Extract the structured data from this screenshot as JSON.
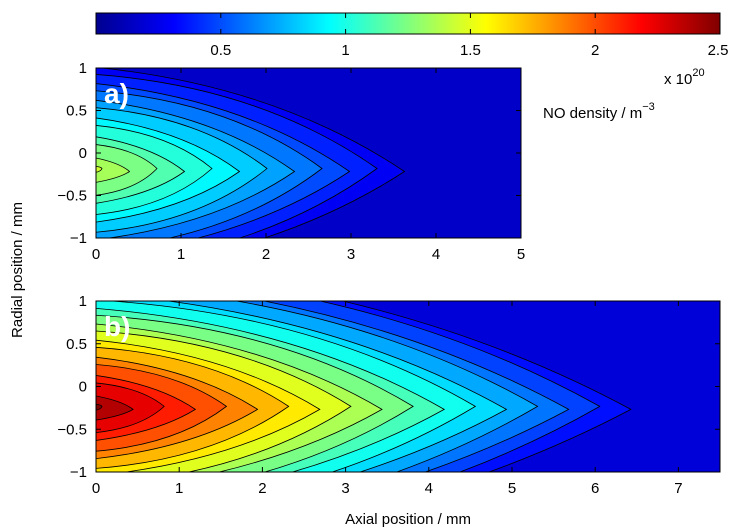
{
  "chart_data": [
    {
      "type": "heatmap",
      "panel_label": "a)",
      "x_ticks": [
        "0",
        "1",
        "2",
        "3",
        "4",
        "5"
      ],
      "y_ticks": [
        "1",
        "0.5",
        "0",
        "−0.5",
        "−1"
      ],
      "xlim": [
        0,
        5
      ],
      "ylim": [
        -1,
        1
      ],
      "hot_spot": {
        "x": 0,
        "y": -0.2,
        "value": 1.45
      },
      "field_description": "NO density peaks near axial 0, radial -0.2 and decays axially (faster than panel b)"
    },
    {
      "type": "heatmap",
      "panel_label": "b)",
      "x_ticks": [
        "0",
        "1",
        "2",
        "3",
        "4",
        "5",
        "6",
        "7"
      ],
      "y_ticks": [
        "1",
        "0.5",
        "0",
        "−0.5",
        "−1"
      ],
      "xlim": [
        0,
        7.5
      ],
      "ylim": [
        -1,
        1
      ],
      "hot_spot": {
        "x": 0,
        "y": -0.25,
        "value": 2.5
      },
      "field_description": "NO density peaks near axial 0, radial -0.25 and decays slowly along the axial direction"
    }
  ],
  "colorbar": {
    "range": [
      0,
      2.5
    ],
    "ticks": [
      "0.5",
      "1",
      "1.5",
      "2",
      "2.5"
    ],
    "colormap": "jet",
    "scale_text": "x 10",
    "scale_exponent": "20",
    "label_prefix": "NO density / m",
    "label_exponent": "−3"
  },
  "axes": {
    "xlabel": "Axial position / mm",
    "ylabel": "Radial position / mm"
  }
}
